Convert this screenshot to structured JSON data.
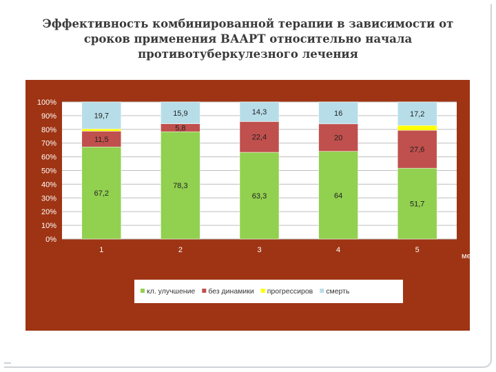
{
  "slide": {
    "title_lines": [
      "Эффективность комбинированной терапии в зависимости от",
      "сроков применения ВААРТ относительно начала",
      "противотуберкулезного лечения"
    ]
  },
  "colors": {
    "panel_bg": "#9E3413",
    "plot_bg": "#FFFFFF",
    "grid": "#BDBDBD",
    "series": [
      "#92D050",
      "#C0504D",
      "#FFFF00",
      "#B7DEE8"
    ]
  },
  "chart_data": {
    "type": "bar",
    "stacked": true,
    "normalized_percent": true,
    "categories": [
      "1",
      "2",
      "3",
      "4",
      "5"
    ],
    "xlabel": "мес",
    "ylabel": "",
    "ylim": [
      0,
      100
    ],
    "yticks": [
      "0%",
      "10%",
      "20%",
      "30%",
      "40%",
      "50%",
      "60%",
      "70%",
      "80%",
      "90%",
      "100%"
    ],
    "grid": true,
    "legend_position": "bottom",
    "series": [
      {
        "name": "кл. улучшение",
        "values": [
          67.2,
          78.3,
          63.3,
          64,
          51.7
        ],
        "labels": [
          "67,2",
          "78,3",
          "63,3",
          "64",
          "51,7"
        ]
      },
      {
        "name": "без динамики",
        "values": [
          11.5,
          5.8,
          22.4,
          20,
          27.6
        ],
        "labels": [
          "11,5",
          "5,8",
          "22,4",
          "20",
          "27,6"
        ]
      },
      {
        "name": "прогрессиров",
        "values": [
          1.6,
          0,
          0,
          0,
          3.5
        ],
        "labels": [
          "",
          "",
          "",
          "",
          ""
        ]
      },
      {
        "name": "смерть",
        "values": [
          19.7,
          15.9,
          14.3,
          16,
          17.2
        ],
        "labels": [
          "19,7",
          "15,9",
          "14,3",
          "16",
          "17,2"
        ]
      }
    ]
  }
}
